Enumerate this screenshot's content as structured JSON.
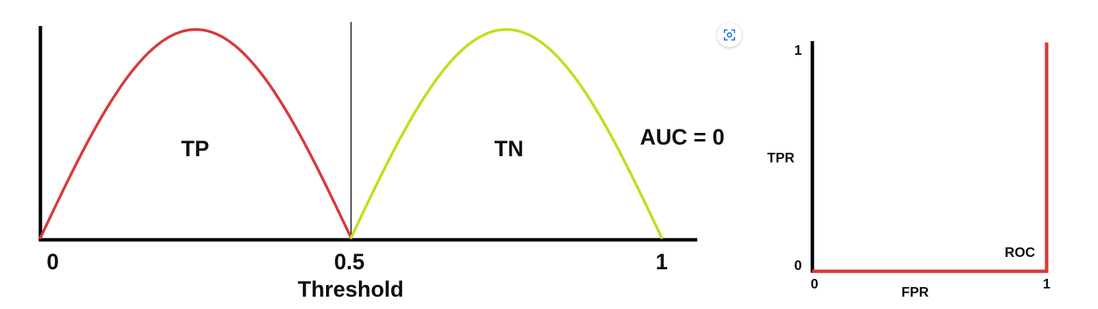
{
  "chart_data": [
    {
      "type": "line",
      "xlabel": "Threshold",
      "xlim": [
        0,
        1
      ],
      "x_ticks": [
        "0",
        "0.5",
        "1"
      ],
      "threshold": 0.5,
      "series": [
        {
          "name": "TP",
          "color": "#d93a3a",
          "x": [
            0,
            0.25,
            0.5
          ],
          "shape": "half-sine",
          "peak_x": 0.25
        },
        {
          "name": "TN",
          "color": "#c3de1e",
          "x": [
            0.5,
            0.75,
            1
          ],
          "shape": "half-sine",
          "peak_x": 0.75
        }
      ],
      "annotations": [
        "AUC = 0"
      ]
    },
    {
      "type": "line",
      "xlabel": "FPR",
      "ylabel": "TPR",
      "xlim": [
        0,
        1
      ],
      "ylim": [
        0,
        1
      ],
      "x_ticks": [
        "0",
        "1"
      ],
      "y_ticks": [
        "0",
        "1"
      ],
      "series": [
        {
          "name": "ROC",
          "color": "#d93a3a",
          "x": [
            0,
            1,
            1
          ],
          "y": [
            0,
            0,
            1
          ]
        }
      ]
    }
  ],
  "ui": {
    "lens_icon": "visual-search-icon",
    "accent_color": "#1a73e8"
  }
}
